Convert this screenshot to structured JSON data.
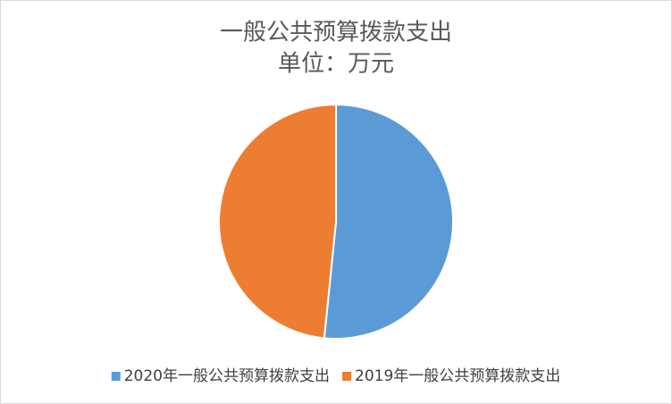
{
  "chart_data": {
    "type": "pie",
    "title": "一般公共预算拨款支出",
    "subtitle": "单位：万元",
    "categories": [
      "2020年一般公共预算拨款支出",
      "2019年一般公共预算拨款支出"
    ],
    "values": [
      51.6,
      48.4
    ],
    "colors": [
      "#5b9bd5",
      "#ed7d31"
    ],
    "legend": "bottom"
  }
}
